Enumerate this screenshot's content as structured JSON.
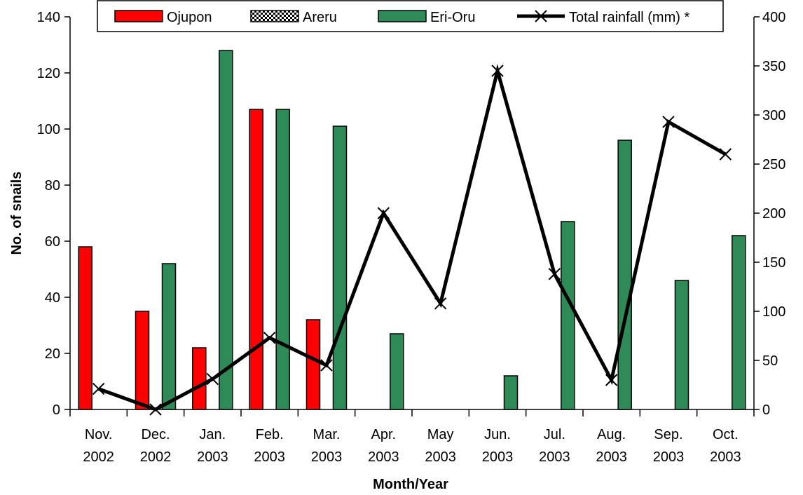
{
  "chart_data": {
    "type": "bar",
    "categories": [
      [
        "Nov.",
        "2002"
      ],
      [
        "Dec.",
        "2002"
      ],
      [
        "Jan.",
        "2003"
      ],
      [
        "Feb.",
        "2003"
      ],
      [
        "Mar.",
        "2003"
      ],
      [
        "Apr.",
        "2003"
      ],
      [
        "May",
        "2003"
      ],
      [
        "Jun.",
        "2003"
      ],
      [
        "Jul.",
        "2003"
      ],
      [
        "Aug.",
        "2003"
      ],
      [
        "Sep.",
        "2003"
      ],
      [
        "Oct.",
        "2003"
      ]
    ],
    "series": [
      {
        "name": "Ojupon",
        "type": "bar",
        "axis": "left",
        "color": "#ff0000",
        "values": [
          58,
          35,
          22,
          107,
          32,
          0,
          0,
          0,
          0,
          0,
          0,
          0
        ]
      },
      {
        "name": "Areru",
        "type": "bar",
        "axis": "left",
        "pattern": "checkered",
        "values": [
          0,
          0,
          0,
          0,
          0,
          0,
          0,
          0,
          0,
          0,
          0,
          0
        ]
      },
      {
        "name": "Eri-Oru",
        "type": "bar",
        "axis": "left",
        "color": "#2e8b57",
        "values": [
          0,
          52,
          128,
          107,
          101,
          27,
          0,
          12,
          67,
          96,
          46,
          62
        ]
      },
      {
        "name": "Total rainfall (mm) *",
        "type": "line",
        "axis": "right",
        "color": "#000000",
        "marker": "x",
        "values": [
          21,
          0,
          31,
          73,
          45,
          200,
          108,
          345,
          138,
          30,
          293,
          260
        ]
      }
    ],
    "xlabel": "Month/Year",
    "ylabel": "No. of snails",
    "ylim": [
      0,
      140
    ],
    "yticks": [
      0,
      20,
      40,
      60,
      80,
      100,
      120,
      140
    ],
    "y2lim": [
      0,
      400
    ],
    "y2ticks": [
      0,
      50,
      100,
      150,
      200,
      250,
      300,
      350,
      400
    ],
    "grid": false,
    "legend_position": "top"
  }
}
